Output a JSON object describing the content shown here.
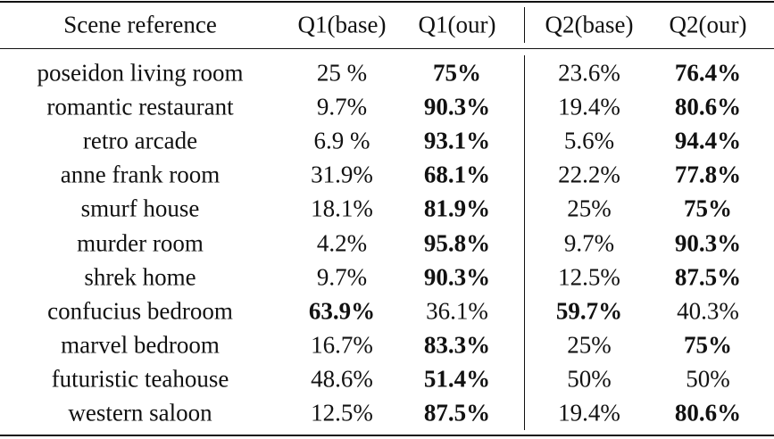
{
  "table": {
    "header": [
      "Scene reference",
      "Q1(base)",
      "Q1(our)",
      "Q2(base)",
      "Q2(our)"
    ],
    "rows": [
      {
        "cells": [
          "poseidon living room",
          "25 %",
          "75%",
          "23.6%",
          "76.4%"
        ],
        "bold": [
          2,
          4
        ]
      },
      {
        "cells": [
          "romantic restaurant",
          "9.7%",
          "90.3%",
          "19.4%",
          "80.6%"
        ],
        "bold": [
          2,
          4
        ]
      },
      {
        "cells": [
          "retro arcade",
          "6.9 %",
          "93.1%",
          "5.6%",
          "94.4%"
        ],
        "bold": [
          2,
          4
        ]
      },
      {
        "cells": [
          "anne frank room",
          "31.9%",
          "68.1%",
          "22.2%",
          "77.8%"
        ],
        "bold": [
          2,
          4
        ]
      },
      {
        "cells": [
          "smurf house",
          "18.1%",
          "81.9%",
          "25%",
          "75%"
        ],
        "bold": [
          2,
          4
        ]
      },
      {
        "cells": [
          "murder room",
          "4.2%",
          "95.8%",
          "9.7%",
          "90.3%"
        ],
        "bold": [
          2,
          4
        ]
      },
      {
        "cells": [
          "shrek home",
          "9.7%",
          "90.3%",
          "12.5%",
          "87.5%"
        ],
        "bold": [
          2,
          4
        ]
      },
      {
        "cells": [
          "confucius bedroom",
          "63.9%",
          "36.1%",
          "59.7%",
          "40.3%"
        ],
        "bold": [
          1,
          3
        ]
      },
      {
        "cells": [
          "marvel bedroom",
          "16.7%",
          "83.3%",
          "25%",
          "75%"
        ],
        "bold": [
          2,
          4
        ]
      },
      {
        "cells": [
          "futuristic teahouse",
          "48.6%",
          "51.4%",
          "50%",
          "50%"
        ],
        "bold": [
          2
        ]
      },
      {
        "cells": [
          "western saloon",
          "12.5%",
          "87.5%",
          "19.4%",
          "80.6%"
        ],
        "bold": [
          2,
          4
        ]
      }
    ]
  }
}
